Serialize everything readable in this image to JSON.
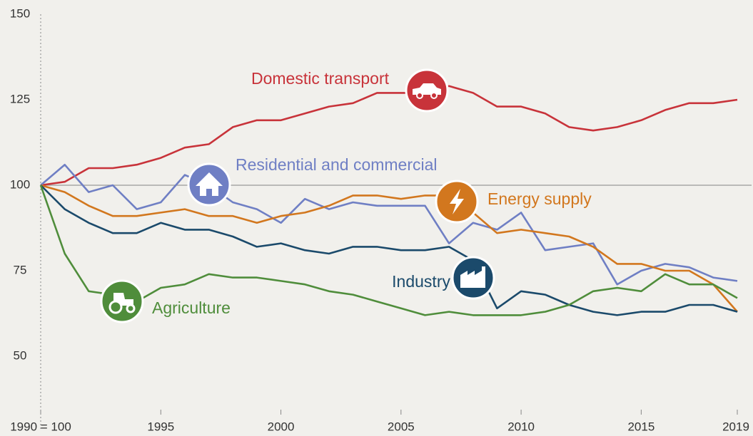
{
  "chart_data": {
    "type": "line",
    "x": [
      1990,
      1991,
      1992,
      1993,
      1994,
      1995,
      1996,
      1997,
      1998,
      1999,
      2000,
      2001,
      2002,
      2003,
      2004,
      2005,
      2006,
      2007,
      2008,
      2009,
      2010,
      2011,
      2012,
      2013,
      2014,
      2015,
      2016,
      2017,
      2018,
      2019
    ],
    "series": [
      {
        "name": "Domestic transport",
        "color": "#c8333a",
        "values": [
          100,
          101,
          105,
          105,
          106,
          108,
          111,
          112,
          117,
          119,
          119,
          121,
          123,
          124,
          127,
          127,
          127,
          129,
          127,
          123,
          123,
          121,
          117,
          116,
          117,
          119,
          122,
          124,
          124,
          125
        ]
      },
      {
        "name": "Residential and commercial",
        "color": "#6f7fc4",
        "values": [
          100,
          106,
          98,
          100,
          93,
          95,
          103,
          100,
          95,
          93,
          89,
          96,
          93,
          95,
          94,
          94,
          94,
          83,
          89,
          87,
          92,
          81,
          82,
          83,
          71,
          75,
          77,
          76,
          73,
          72
        ]
      },
      {
        "name": "Energy supply",
        "color": "#d2771e",
        "values": [
          100,
          98,
          94,
          91,
          91,
          92,
          93,
          91,
          91,
          89,
          91,
          92,
          94,
          97,
          97,
          96,
          97,
          97,
          92,
          86,
          87,
          86,
          85,
          82,
          77,
          77,
          75,
          75,
          71,
          63
        ]
      },
      {
        "name": "Industry",
        "color": "#1b4a6b",
        "values": [
          100,
          93,
          89,
          86,
          86,
          89,
          87,
          87,
          85,
          82,
          83,
          81,
          80,
          82,
          82,
          81,
          81,
          82,
          78,
          64,
          69,
          68,
          65,
          63,
          62,
          63,
          63,
          65,
          65,
          63
        ]
      },
      {
        "name": "Agriculture",
        "color": "#4f8d3b",
        "values": [
          100,
          80,
          69,
          68,
          66,
          70,
          71,
          74,
          73,
          73,
          72,
          71,
          69,
          68,
          66,
          64,
          62,
          63,
          62,
          62,
          62,
          63,
          65,
          69,
          70,
          69,
          74,
          71,
          71,
          67
        ]
      }
    ],
    "xlim": [
      1990,
      2019
    ],
    "xticks": [
      {
        "value": 1990,
        "label": "1990 = 100"
      },
      1995,
      2000,
      2005,
      2010,
      2015,
      2019
    ],
    "ylim": [
      50,
      150
    ],
    "yticks": [
      50,
      75,
      100,
      125,
      150
    ],
    "hline": 100
  }
}
